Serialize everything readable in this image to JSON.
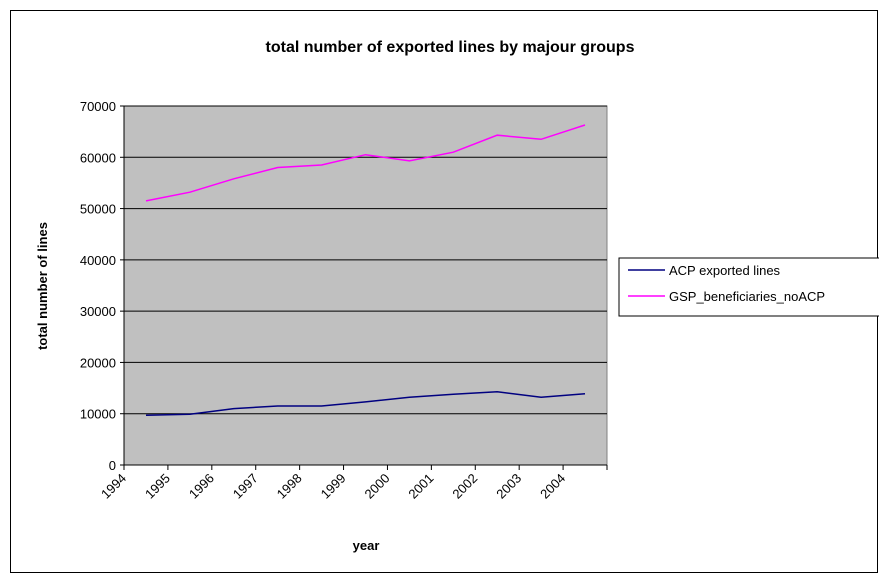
{
  "chart_data": {
    "type": "line",
    "title": "total number of exported lines by majour groups",
    "xlabel": "year",
    "ylabel": "total number of lines",
    "categories": [
      "1994",
      "1995",
      "1996",
      "1997",
      "1998",
      "1999",
      "2000",
      "2001",
      "2002",
      "2003",
      "2004"
    ],
    "ylim": [
      0,
      70000
    ],
    "yticks": [
      "0",
      "10000",
      "20000",
      "30000",
      "40000",
      "50000",
      "60000",
      "70000"
    ],
    "grid": true,
    "legend_position": "right",
    "plot_background": "#c0c0c0",
    "series": [
      {
        "name": "ACP exported lines",
        "color": "#000080",
        "values": [
          9700,
          9900,
          11000,
          11500,
          11500,
          12300,
          13200,
          13800,
          14300,
          13200,
          13900
        ]
      },
      {
        "name": "GSP_beneficiaries_noACP",
        "color": "#ff00ff",
        "values": [
          51500,
          53200,
          55800,
          58000,
          58500,
          60500,
          59300,
          61000,
          64300,
          63500,
          66300
        ]
      }
    ]
  }
}
